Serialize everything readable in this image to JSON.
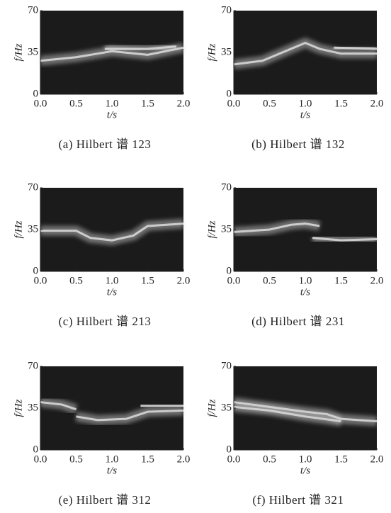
{
  "chart_data": [
    {
      "type": "spectrogram",
      "title": "(a) Hilbert 谱 123",
      "xlabel": "t/s",
      "ylabel": "f/Hz",
      "xlim": [
        0,
        2
      ],
      "ylim": [
        0,
        70
      ],
      "xticks": [
        {
          "value": 0,
          "label": "0.0"
        },
        0.5,
        {
          "value": 1,
          "label": "1.0"
        },
        1.5,
        {
          "value": 2,
          "label": "2.0"
        }
      ],
      "yticks": [
        0,
        35,
        70
      ],
      "background": "#1b1b1b",
      "color": "#d6d6d6",
      "ridges": [
        {
          "x": [
            0,
            0.5,
            0.8,
            1.0,
            1.5,
            2.0
          ],
          "y": [
            28,
            31,
            34,
            36,
            33,
            39
          ]
        },
        {
          "x": [
            0.9,
            1.2,
            1.5,
            1.9
          ],
          "y": [
            38,
            38,
            38,
            40
          ]
        }
      ]
    },
    {
      "type": "spectrogram",
      "title": "(b) Hilbert 谱 132",
      "xlabel": "t/s",
      "ylabel": "f/Hz",
      "xlim": [
        0,
        2
      ],
      "ylim": [
        0,
        70
      ],
      "xticks": [
        {
          "value": 0,
          "label": "0.0"
        },
        0.5,
        {
          "value": 1,
          "label": "1.0"
        },
        1.5,
        {
          "value": 2,
          "label": "2.0"
        }
      ],
      "yticks": [
        0,
        35,
        70
      ],
      "background": "#1b1b1b",
      "color": "#d6d6d6",
      "ridges": [
        {
          "x": [
            0,
            0.4,
            0.8,
            1.0,
            1.2,
            1.5,
            2.0
          ],
          "y": [
            25,
            28,
            38,
            43,
            38,
            34,
            34
          ]
        },
        {
          "x": [
            1.4,
            2.0
          ],
          "y": [
            39,
            38
          ]
        }
      ]
    },
    {
      "type": "spectrogram",
      "title": "(c) Hilbert 谱 213",
      "xlabel": "t/s",
      "ylabel": "f/Hz",
      "xlim": [
        0,
        2
      ],
      "ylim": [
        0,
        70
      ],
      "xticks": [
        {
          "value": 0,
          "label": "0.0"
        },
        0.5,
        {
          "value": 1,
          "label": "1.0"
        },
        1.5,
        {
          "value": 2,
          "label": "2.0"
        }
      ],
      "yticks": [
        0,
        35,
        70
      ],
      "background": "#1b1b1b",
      "color": "#d6d6d6",
      "ridges": [
        {
          "x": [
            0,
            0.5,
            0.7,
            1.0,
            1.3,
            1.5,
            2.0
          ],
          "y": [
            34,
            34,
            28,
            26,
            30,
            38,
            40
          ]
        }
      ]
    },
    {
      "type": "spectrogram",
      "title": "(d) Hilbert 谱 231",
      "xlabel": "t/s",
      "ylabel": "f/Hz",
      "xlim": [
        0,
        2
      ],
      "ylim": [
        0,
        70
      ],
      "xticks": [
        {
          "value": 0,
          "label": "0.0"
        },
        0.5,
        {
          "value": 1,
          "label": "1.0"
        },
        1.5,
        {
          "value": 2,
          "label": "2.0"
        }
      ],
      "yticks": [
        0,
        35,
        70
      ],
      "background": "#1b1b1b",
      "color": "#d6d6d6",
      "ridges": [
        {
          "x": [
            0,
            0.5,
            0.8,
            1.0,
            1.2
          ],
          "y": [
            33,
            35,
            39,
            40,
            38
          ]
        },
        {
          "x": [
            1.1,
            1.5,
            2.0
          ],
          "y": [
            28,
            26,
            27
          ]
        }
      ]
    },
    {
      "type": "spectrogram",
      "title": "(e) Hilbert 谱 312",
      "xlabel": "t/s",
      "ylabel": "f/Hz",
      "xlim": [
        0,
        2
      ],
      "ylim": [
        0,
        70
      ],
      "xticks": [
        {
          "value": 0,
          "label": "0.0"
        },
        0.5,
        {
          "value": 1,
          "label": "1.0"
        },
        1.5,
        {
          "value": 2,
          "label": "2.0"
        }
      ],
      "yticks": [
        0,
        35,
        70
      ],
      "background": "#1b1b1b",
      "color": "#d6d6d6",
      "ridges": [
        {
          "x": [
            0,
            0.3,
            0.5
          ],
          "y": [
            40,
            38,
            34
          ]
        },
        {
          "x": [
            0.5,
            0.8,
            1.2,
            1.5,
            2.0
          ],
          "y": [
            28,
            25,
            26,
            32,
            33
          ]
        },
        {
          "x": [
            1.4,
            2.0
          ],
          "y": [
            37,
            37
          ]
        }
      ]
    },
    {
      "type": "spectrogram",
      "title": "(f) Hilbert 谱 321",
      "xlabel": "t/s",
      "ylabel": "f/Hz",
      "xlim": [
        0,
        2
      ],
      "ylim": [
        0,
        70
      ],
      "xticks": [
        {
          "value": 0,
          "label": "0.0"
        },
        0.5,
        {
          "value": 1,
          "label": "1.0"
        },
        1.5,
        {
          "value": 2,
          "label": "2.0"
        }
      ],
      "yticks": [
        0,
        35,
        70
      ],
      "background": "#1b1b1b",
      "color": "#d6d6d6",
      "ridges": [
        {
          "x": [
            0,
            0.5,
            1.0,
            1.3,
            1.5,
            2.0
          ],
          "y": [
            40,
            36,
            32,
            30,
            26,
            24
          ]
        },
        {
          "x": [
            0,
            0.5,
            1.0,
            1.5
          ],
          "y": [
            36,
            33,
            28,
            24
          ]
        }
      ]
    }
  ]
}
